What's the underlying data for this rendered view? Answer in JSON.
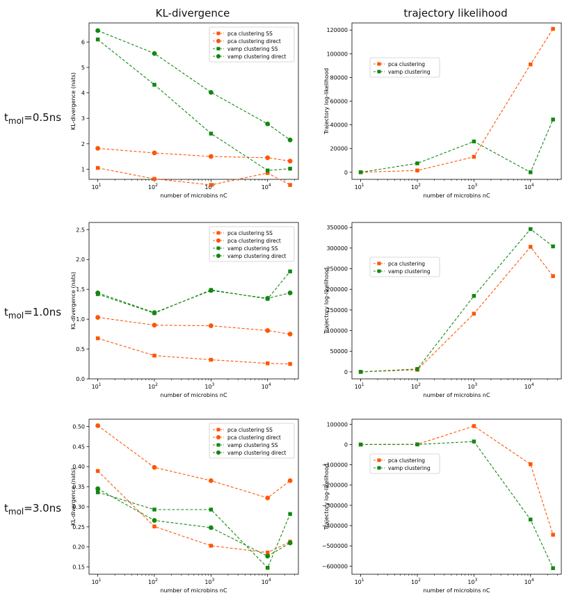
{
  "column_titles": [
    "KL-divergence",
    "trajectory likelihood"
  ],
  "row_labels": [
    {
      "sym": "t",
      "sub": "mol",
      "val": "=0.5ns"
    },
    {
      "sym": "t",
      "sub": "mol",
      "val": "=1.0ns"
    },
    {
      "sym": "t",
      "sub": "mol",
      "val": "=3.0ns"
    }
  ],
  "colors": {
    "pca": "#ff5500",
    "vamp": "#118811"
  },
  "chart_data": [
    {
      "type": "line",
      "row": 0,
      "col": 0,
      "xscale": "log",
      "x": [
        10,
        100,
        1000,
        10000,
        25000
      ],
      "xlim": [
        7,
        35000
      ],
      "xticks": [
        {
          "v": 10,
          "b": "10",
          "e": "1"
        },
        {
          "v": 100,
          "b": "10",
          "e": "2"
        },
        {
          "v": 1000,
          "b": "10",
          "e": "3"
        },
        {
          "v": 10000,
          "b": "10",
          "e": "4"
        }
      ],
      "xlabel": "number of microbins nC",
      "ylabel": "KL-divergence (nats)",
      "ylim": [
        0.6,
        6.75
      ],
      "yticks": [
        1,
        2,
        3,
        4,
        5,
        6
      ],
      "ytick_labels": [
        "1",
        "2",
        "3",
        "4",
        "5",
        "6"
      ],
      "legend": "top-right",
      "series": [
        {
          "name": "pca clustering SS",
          "color": "#ff5500",
          "marker": "square",
          "values": [
            1.05,
            0.62,
            0.38,
            0.85,
            0.38
          ]
        },
        {
          "name": "pca clustering direct",
          "color": "#ff5500",
          "marker": "circle",
          "values": [
            1.82,
            1.64,
            1.5,
            1.45,
            1.32
          ]
        },
        {
          "name": "vamp clustering SS",
          "color": "#118811",
          "marker": "square",
          "values": [
            6.1,
            4.32,
            2.4,
            0.95,
            1.02
          ]
        },
        {
          "name": "vamp clustering direct",
          "color": "#118811",
          "marker": "circle",
          "values": [
            6.45,
            5.55,
            4.02,
            2.78,
            2.15
          ]
        }
      ]
    },
    {
      "type": "line",
      "row": 0,
      "col": 1,
      "xscale": "log",
      "x": [
        10,
        100,
        1000,
        10000,
        25000
      ],
      "xlim": [
        7,
        35000
      ],
      "xticks": [
        {
          "v": 10,
          "b": "10",
          "e": "1"
        },
        {
          "v": 100,
          "b": "10",
          "e": "2"
        },
        {
          "v": 1000,
          "b": "10",
          "e": "3"
        },
        {
          "v": 10000,
          "b": "10",
          "e": "4"
        }
      ],
      "xlabel": "number of microbins nC",
      "ylabel": "Trajectory log-likelihood",
      "ylim": [
        -6000,
        126000
      ],
      "yticks": [
        0,
        20000,
        40000,
        60000,
        80000,
        100000,
        120000
      ],
      "ytick_labels": [
        "0",
        "20000",
        "40000",
        "60000",
        "80000",
        "100000",
        "120000"
      ],
      "legend": "upper-left",
      "series": [
        {
          "name": "pca clustering",
          "color": "#ff5500",
          "marker": "square",
          "values": [
            0,
            1500,
            13000,
            91000,
            121000
          ]
        },
        {
          "name": "vamp clustering",
          "color": "#118811",
          "marker": "square",
          "values": [
            0,
            7500,
            26000,
            0,
            44500
          ]
        }
      ]
    },
    {
      "type": "line",
      "row": 1,
      "col": 0,
      "xscale": "log",
      "x": [
        10,
        100,
        1000,
        10000,
        25000
      ],
      "xlim": [
        7,
        35000
      ],
      "xticks": [
        {
          "v": 10,
          "b": "10",
          "e": "1"
        },
        {
          "v": 100,
          "b": "10",
          "e": "2"
        },
        {
          "v": 1000,
          "b": "10",
          "e": "3"
        },
        {
          "v": 10000,
          "b": "10",
          "e": "4"
        }
      ],
      "xlabel": "number of microbins nC",
      "ylabel": "KL-divergence (nats)",
      "ylim": [
        0,
        2.62
      ],
      "yticks": [
        0,
        0.5,
        1.0,
        1.5,
        2.0,
        2.5
      ],
      "ytick_labels": [
        "0.0",
        "0.5",
        "1.0",
        "1.5",
        "2.0",
        "2.5"
      ],
      "legend": "top-right",
      "series": [
        {
          "name": "pca clustering SS",
          "color": "#ff5500",
          "marker": "square",
          "values": [
            0.68,
            0.39,
            0.32,
            0.26,
            0.25
          ]
        },
        {
          "name": "pca clustering direct",
          "color": "#ff5500",
          "marker": "circle",
          "values": [
            1.03,
            0.9,
            0.89,
            0.81,
            0.75
          ]
        },
        {
          "name": "vamp clustering SS",
          "color": "#118811",
          "marker": "square",
          "values": [
            1.42,
            1.1,
            1.49,
            1.34,
            1.8
          ]
        },
        {
          "name": "vamp clustering direct",
          "color": "#118811",
          "marker": "circle",
          "values": [
            1.44,
            1.11,
            1.48,
            1.35,
            1.44
          ]
        }
      ]
    },
    {
      "type": "line",
      "row": 1,
      "col": 1,
      "xscale": "log",
      "x": [
        10,
        100,
        1000,
        10000,
        25000
      ],
      "xlim": [
        7,
        35000
      ],
      "xticks": [
        {
          "v": 10,
          "b": "10",
          "e": "1"
        },
        {
          "v": 100,
          "b": "10",
          "e": "2"
        },
        {
          "v": 1000,
          "b": "10",
          "e": "3"
        },
        {
          "v": 10000,
          "b": "10",
          "e": "4"
        }
      ],
      "xlabel": "number of microbins nC",
      "ylabel": "Trajectory log-likelihood",
      "ylim": [
        -17000,
        362000
      ],
      "yticks": [
        0,
        50000,
        100000,
        150000,
        200000,
        250000,
        300000,
        350000
      ],
      "ytick_labels": [
        "0",
        "50000",
        "100000",
        "150000",
        "200000",
        "250000",
        "300000",
        "350000"
      ],
      "legend": "upper-left",
      "series": [
        {
          "name": "pca clustering",
          "color": "#ff5500",
          "marker": "square",
          "values": [
            0,
            5000,
            141000,
            303000,
            232000
          ]
        },
        {
          "name": "vamp clustering",
          "color": "#118811",
          "marker": "square",
          "values": [
            0,
            7000,
            184000,
            346000,
            304000
          ]
        }
      ]
    },
    {
      "type": "line",
      "row": 2,
      "col": 0,
      "xscale": "log",
      "x": [
        10,
        100,
        1000,
        10000,
        25000
      ],
      "xlim": [
        7,
        35000
      ],
      "xticks": [
        {
          "v": 10,
          "b": "10",
          "e": "1"
        },
        {
          "v": 100,
          "b": "10",
          "e": "2"
        },
        {
          "v": 1000,
          "b": "10",
          "e": "3"
        },
        {
          "v": 10000,
          "b": "10",
          "e": "4"
        }
      ],
      "xlabel": "number of microbins nC",
      "ylabel": "KL-divergence (nats)",
      "ylim": [
        0.132,
        0.518
      ],
      "yticks": [
        0.15,
        0.2,
        0.25,
        0.3,
        0.35,
        0.4,
        0.45,
        0.5
      ],
      "ytick_labels": [
        "0.15",
        "0.20",
        "0.25",
        "0.30",
        "0.35",
        "0.40",
        "0.45",
        "0.50"
      ],
      "legend": "top-right",
      "series": [
        {
          "name": "pca clustering SS",
          "color": "#ff5500",
          "marker": "square",
          "values": [
            0.389,
            0.251,
            0.203,
            0.186,
            0.213
          ]
        },
        {
          "name": "pca clustering direct",
          "color": "#ff5500",
          "marker": "circle",
          "values": [
            0.502,
            0.398,
            0.365,
            0.322,
            0.365
          ]
        },
        {
          "name": "vamp clustering SS",
          "color": "#118811",
          "marker": "square",
          "values": [
            0.336,
            0.293,
            0.293,
            0.148,
            0.282
          ]
        },
        {
          "name": "vamp clustering direct",
          "color": "#118811",
          "marker": "circle",
          "values": [
            0.345,
            0.266,
            0.248,
            0.177,
            0.21
          ]
        }
      ]
    },
    {
      "type": "line",
      "row": 2,
      "col": 1,
      "xscale": "log",
      "x": [
        10,
        100,
        1000,
        10000,
        25000
      ],
      "xlim": [
        7,
        35000
      ],
      "xticks": [
        {
          "v": 10,
          "b": "10",
          "e": "1"
        },
        {
          "v": 100,
          "b": "10",
          "e": "2"
        },
        {
          "v": 1000,
          "b": "10",
          "e": "3"
        },
        {
          "v": 10000,
          "b": "10",
          "e": "4"
        }
      ],
      "xlabel": "number of microbins nC",
      "ylabel": "Trajectory log-likelihood",
      "ylim": [
        -640000,
        125000
      ],
      "yticks": [
        100000,
        0,
        -100000,
        -200000,
        -300000,
        -400000,
        -500000,
        -600000
      ],
      "ytick_labels": [
        "100000",
        "0",
        "−100000",
        "−200000",
        "−300000",
        "−400000",
        "−500000",
        "−600000"
      ],
      "legend": "upper-left",
      "series": [
        {
          "name": "pca clustering",
          "color": "#ff5500",
          "marker": "square",
          "values": [
            0,
            1000,
            91000,
            -97000,
            -445000
          ]
        },
        {
          "name": "vamp clustering",
          "color": "#118811",
          "marker": "square",
          "values": [
            0,
            500,
            15000,
            -370000,
            -610000
          ]
        }
      ]
    }
  ]
}
